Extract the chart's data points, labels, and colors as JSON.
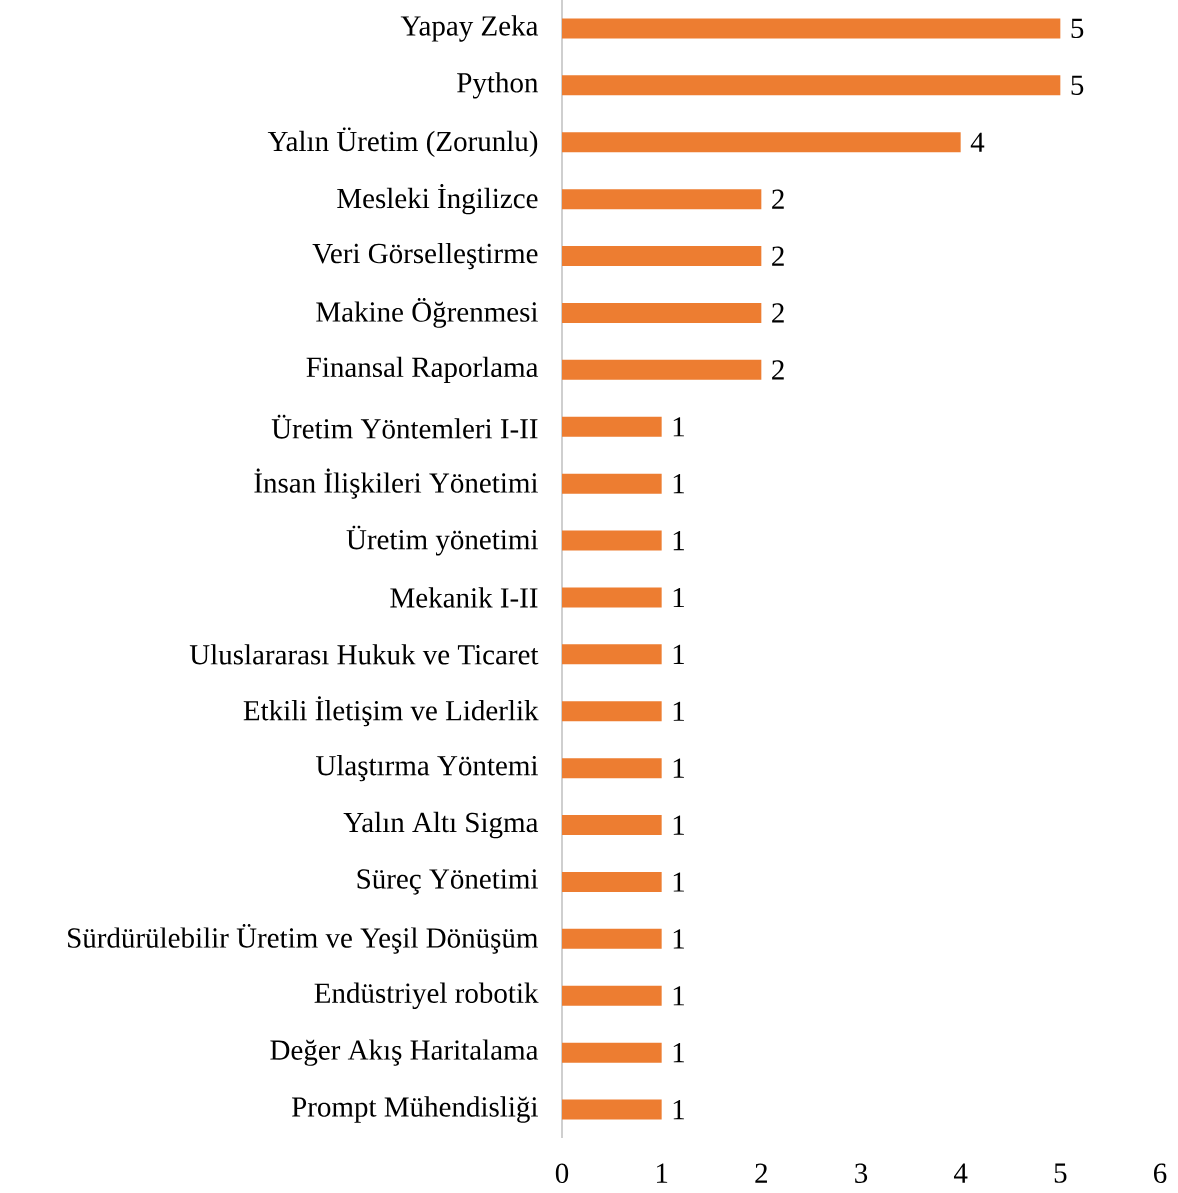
{
  "chart_data": {
    "type": "bar",
    "orientation": "horizontal",
    "categories": [
      "Yapay Zeka",
      "Python",
      "Yalın Üretim (Zorunlu)",
      "Mesleki İngilizce",
      "Veri Görselleştirme",
      "Makine Öğrenmesi",
      "Finansal Raporlama",
      "Üretim Yöntemleri I-II",
      "İnsan İlişkileri Yönetimi",
      "Üretim yönetimi",
      "Mekanik I-II",
      "Uluslararası Hukuk ve Ticaret",
      "Etkili İletişim ve Liderlik",
      "Ulaştırma Yöntemi",
      "Yalın Altı Sigma",
      "Süreç Yönetimi",
      "Sürdürülebilir Üretim ve Yeşil Dönüşüm",
      "Endüstriyel robotik",
      "Değer Akış Haritalama",
      "Prompt Mühendisliği"
    ],
    "values": [
      5,
      5,
      4,
      2,
      2,
      2,
      2,
      1,
      1,
      1,
      1,
      1,
      1,
      1,
      1,
      1,
      1,
      1,
      1,
      1
    ],
    "color": "#ed7d31",
    "xlim": [
      0,
      6
    ],
    "xticks": [
      0,
      1,
      2,
      3,
      4,
      5,
      6
    ],
    "data_labels": true
  }
}
